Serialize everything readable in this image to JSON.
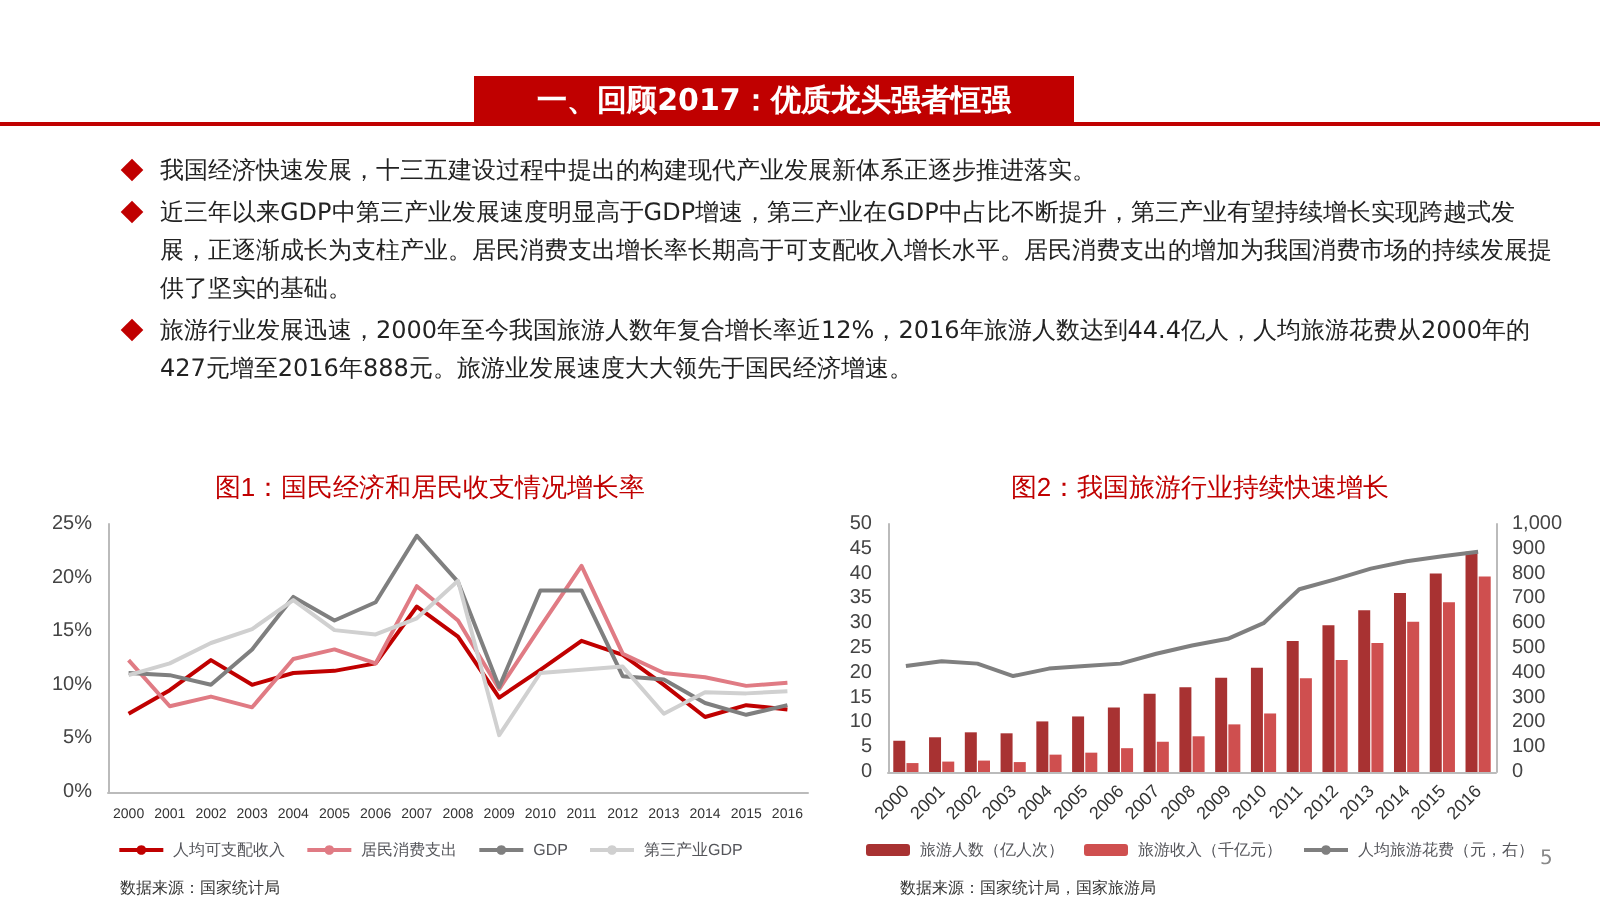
{
  "chart_data": [
    {
      "type": "other",
      "title": "一、回顾2017：优质龙头强者恒强",
      "annotations": [
        "我国经济快速发展，十三五建设过程中提出的构建现代产业发展新体系正逐步推进落实。",
        "近三年以来GDP中第三产业发展速度明显高于GDP增速，第三产业在GDP中占比不断提升，第三产业有望持续增长实现跨越式发展，正逐渐成长为支柱产业。居民消费支出增长率长期高于可支配收入增长水平。居民消费支出的增加为我国消费市场的持续发展提供了坚实的基础。",
        "旅游行业发展迅速，2000年至今我国旅游人数年复合增长率近12%，2016年旅游人数达到44.4亿人，人均旅游花费从2000年的427元增至2016年888元。旅游业发展速度大大领先于国民经济增速。",
        "5"
      ]
    },
    {
      "type": "line",
      "title": "图1：国民经济和居民收支情况增长率",
      "categories": [
        "2000",
        "2001",
        "2002",
        "2003",
        "2004",
        "2005",
        "2006",
        "2007",
        "2008",
        "2009",
        "2010",
        "2011",
        "2012",
        "2013",
        "2014",
        "2015",
        "2016"
      ],
      "series": [
        {
          "name": "人均可支配收入",
          "color": "#c00000",
          "values": [
            7.3,
            9.5,
            12.3,
            10.0,
            11.1,
            11.3,
            12.0,
            17.3,
            14.5,
            8.8,
            11.4,
            14.1,
            12.8,
            10.0,
            7.0,
            8.1,
            7.7
          ]
        },
        {
          "name": "居民消费支出",
          "color": "#e07b84",
          "values": [
            12.3,
            8.0,
            8.9,
            7.9,
            12.4,
            13.3,
            12.0,
            19.2,
            16.0,
            9.6,
            15.4,
            21.1,
            12.9,
            11.1,
            10.7,
            9.9,
            10.2
          ]
        },
        {
          "name": "GDP",
          "color": "#7f7f7f",
          "values": [
            11.1,
            10.9,
            10.0,
            13.3,
            18.2,
            16.0,
            17.7,
            23.9,
            19.6,
            9.8,
            18.8,
            18.8,
            10.8,
            10.5,
            8.3,
            7.2,
            8.1
          ]
        },
        {
          "name": "第三产业GDP",
          "color": "#d0d0d0",
          "values": [
            10.9,
            12.0,
            13.9,
            15.2,
            17.9,
            15.1,
            14.7,
            16.2,
            19.7,
            5.3,
            11.1,
            11.4,
            11.7,
            7.3,
            9.3,
            9.2,
            9.4
          ]
        }
      ],
      "ylim": [
        0,
        25
      ],
      "yticks": [
        {
          "value": 0,
          "label": "0%"
        },
        {
          "value": 5,
          "label": "5%"
        },
        {
          "value": 10,
          "label": "10%"
        },
        {
          "value": 15,
          "label": "15%"
        },
        {
          "value": 20,
          "label": "20%"
        },
        {
          "value": 25,
          "label": "25%"
        }
      ],
      "grid": false,
      "legend": "bottom",
      "marker": "none",
      "line_style": "solid",
      "annotations": [
        "数据来源：国家统计局"
      ]
    },
    {
      "type": "bar",
      "title": "图2：我国旅游行业持续快速增长",
      "categories": [
        "2000",
        "2001",
        "2002",
        "2003",
        "2004",
        "2005",
        "2006",
        "2007",
        "2008",
        "2009",
        "2010",
        "2011",
        "2012",
        "2013",
        "2014",
        "2015",
        "2016"
      ],
      "series": [
        {
          "name": "旅游人数（亿人次）",
          "color": "#a83232",
          "values": [
            6.3,
            7.0,
            8.0,
            7.8,
            10.2,
            11.2,
            13.0,
            15.8,
            17.1,
            19.0,
            21.0,
            26.4,
            29.6,
            32.6,
            36.1,
            40.0,
            44.4
          ]
        },
        {
          "name": "旅游收入（千亿元）",
          "color": "#cf4f4f",
          "values": [
            1.8,
            2.1,
            2.3,
            2.0,
            3.5,
            3.9,
            4.8,
            6.1,
            7.2,
            9.6,
            11.8,
            18.9,
            22.6,
            26.0,
            30.3,
            34.2,
            39.4
          ]
        },
        {
          "name": "人均旅游花费（元，右）",
          "type": "line",
          "axis": "y2",
          "color": "#7f7f7f",
          "values": [
            427,
            447,
            437,
            387,
            417,
            427,
            437,
            477,
            510,
            537,
            600,
            737,
            777,
            820,
            850,
            870,
            888
          ]
        }
      ],
      "ylim": [
        0,
        50
      ],
      "yticks": [
        0,
        5,
        10,
        15,
        20,
        25,
        30,
        35,
        40,
        45,
        50
      ],
      "y2lim": [
        0,
        1000
      ],
      "y2ticks": [
        0,
        100,
        200,
        300,
        400,
        500,
        600,
        700,
        800,
        900,
        {
          "value": 1000,
          "label": "1,000"
        }
      ],
      "grid": false,
      "legend": "bottom",
      "marker": "none",
      "annotations": [
        "数据来源：国家统计局，国家旅游局"
      ]
    }
  ]
}
